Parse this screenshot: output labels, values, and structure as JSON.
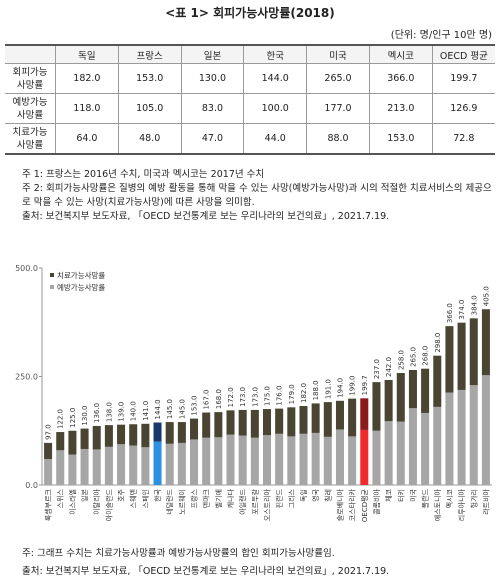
{
  "header": {
    "title": "<표 1> 회피가능사망률(2018)",
    "unit": "(단위: 명/인구 10만 명)"
  },
  "table": {
    "columns": [
      "독일",
      "프랑스",
      "일본",
      "한국",
      "미국",
      "멕시코",
      "OECD 평균"
    ],
    "rows": [
      {
        "label": [
          "회피가능",
          "사망률"
        ],
        "cells": [
          "182.0",
          "153.0",
          "130.0",
          "144.0",
          "265.0",
          "366.0",
          "199.7"
        ]
      },
      {
        "label": [
          "예방가능",
          "사망률"
        ],
        "cells": [
          "118.0",
          "105.0",
          "83.0",
          "100.0",
          "177.0",
          "213.0",
          "126.9"
        ]
      },
      {
        "label": [
          "치료가능",
          "사망률"
        ],
        "cells": [
          "64.0",
          "48.0",
          "47.0",
          "44.0",
          "88.0",
          "153.0",
          "72.8"
        ]
      }
    ]
  },
  "notes": [
    "주 1: 프랑스는 2016년 수치, 미국과 멕시코는 2017년 수치",
    "주 2: 회피가능사망률은 질병의 예방 활동을 통해 막을 수 있는 사망(예방가능사망)과 시의 적절한 치료서비스의 제공으로 막을 수 있는 사망(치료가능사망)에 따른 사망을 의미함.",
    "출처: 보건복지부 보도자료, 「OECD 보건통계로 보는 우리나라의 보건의료」, 2021.7.19."
  ],
  "chart_data": {
    "type": "bar",
    "stacked": true,
    "categories": [
      "룩셈부르크",
      "스위스",
      "이스라엘",
      "일본",
      "이탈리아",
      "아이슬란드",
      "호주",
      "스웨덴",
      "스페인",
      "한국",
      "네덜란드",
      "노르웨이",
      "프랑스",
      "덴마크",
      "벨기에",
      "캐나다",
      "아일랜드",
      "포르투갈",
      "오스트리아",
      "핀란드",
      "그리스",
      "독일",
      "영국",
      "칠레",
      "슬로베니아",
      "코스타리카",
      "OECD평균",
      "콜롬비아",
      "체코",
      "터키",
      "미국",
      "폴란드",
      "에스토니아",
      "멕시코",
      "리투아니아",
      "헝가리",
      "라트비아"
    ],
    "series": [
      {
        "name": "치료가능사망률",
        "color": "#4a4533",
        "values": [
          37,
          42,
          55,
          47,
          54,
          50,
          45,
          49,
          54,
          44,
          50,
          48,
          48,
          58,
          58,
          56,
          59,
          64,
          60,
          58,
          67,
          64,
          68,
          80,
          66,
          87,
          72.8,
          112,
          95,
          112,
          88,
          102,
          118,
          153,
          155,
          154,
          152
        ]
      },
      {
        "name": "예방가능사망률",
        "color": "#a6a6a6",
        "values": [
          60,
          80,
          70,
          83,
          82,
          88,
          94,
          91,
          87,
          100,
          95,
          97,
          105,
          109,
          110,
          116,
          114,
          109,
          115,
          118,
          112,
          118,
          120,
          111,
          128,
          112,
          126.9,
          125,
          147,
          146,
          177,
          166,
          180,
          213,
          219,
          230,
          253
        ]
      }
    ],
    "total_labels": [
      "97.0",
      "122.0",
      "125.0",
      "130.0",
      "136.0",
      "138.0",
      "139.0",
      "140.0",
      "141.0",
      "144.0",
      "145.0",
      "145.0",
      "153.0",
      "167.0",
      "168.0",
      "172.0",
      "173.0",
      "173.0",
      "175.0",
      "176.0",
      "179.0",
      "182.0",
      "188.0",
      "191.0",
      "194.0",
      "199.0",
      "199.7",
      "237.0",
      "242.0",
      "258.0",
      "265.0",
      "268.0",
      "298.0",
      "366.0",
      "374.0",
      "384.0",
      "405.0"
    ],
    "highlights": [
      {
        "category": "한국",
        "colors": [
          "#1b3a6b",
          "#2f8fe0"
        ]
      },
      {
        "category": "OECD평균",
        "colors": [
          "#8b1a1a",
          "#f02a2a"
        ]
      }
    ],
    "ylim": [
      0,
      500
    ],
    "yticks": [
      {
        "value": 0,
        "label": "0.0"
      },
      {
        "value": 250,
        "label": "250.0"
      },
      {
        "value": 500,
        "label": "500.0"
      }
    ],
    "grid": false,
    "legend": "top-left"
  },
  "chart_notes": [
    "주: 그래프 수치는 치료가능사망률과 예방가능사망률의 합인 회피가능사망률임.",
    "출처: 보건복지부 보도자료, 「OECD 보건통계로 보는 우리나라의 보건의료」, 2021.7.19."
  ]
}
